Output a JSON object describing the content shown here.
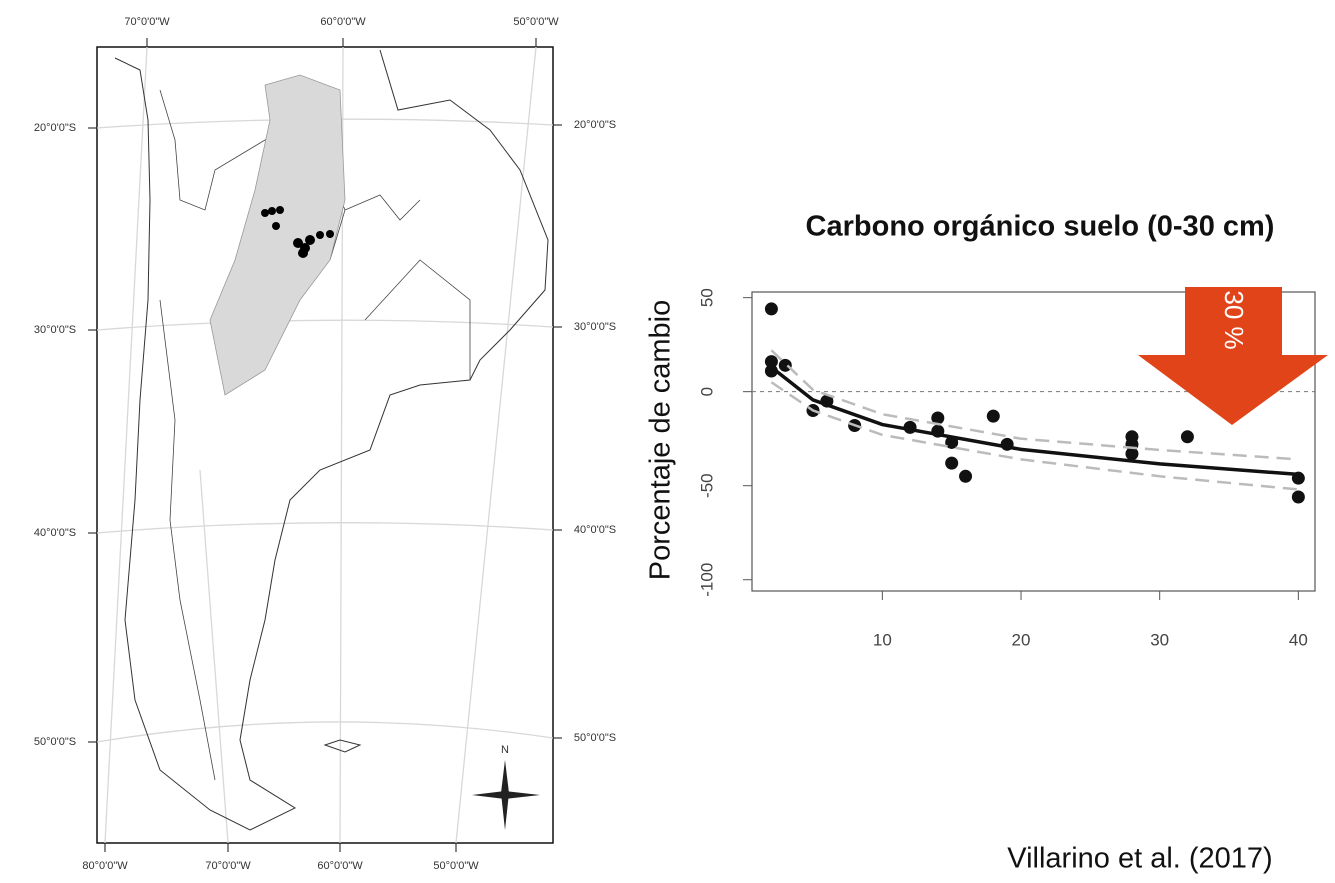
{
  "chart_data": {
    "type": "scatter",
    "title": "Carbono orgánico suelo (0-30 cm)",
    "ylabel": "Porcentaje de cambio",
    "xlim": [
      0.6,
      41.2
    ],
    "ylim": [
      -106,
      53
    ],
    "xticks": [
      10,
      20,
      30,
      40
    ],
    "yticks": [
      50,
      0,
      -50,
      -100
    ],
    "hline": 0,
    "annotation": "30 %",
    "annotation_color": "#e2441a",
    "series": [
      {
        "type": "scatter",
        "color": "#111111",
        "x": [
          2,
          2,
          2,
          3,
          5,
          6,
          8,
          12,
          14,
          14,
          15,
          15,
          16,
          18,
          19,
          28,
          28,
          28,
          32,
          40,
          40
        ],
        "values": [
          44,
          16,
          11,
          14,
          -10,
          -5,
          -18,
          -19,
          -14,
          -21,
          -27,
          -38,
          -45,
          -13,
          -28,
          -24,
          -28,
          -33,
          -24,
          -46,
          -56
        ]
      },
      {
        "type": "line",
        "color": "#bbbbbb",
        "dash": true,
        "x": [
          2,
          5,
          10,
          20,
          30,
          40
        ],
        "values": [
          22,
          1,
          -12,
          -25,
          -31,
          -36
        ]
      },
      {
        "type": "line",
        "color": "#bbbbbb",
        "dash": true,
        "x": [
          2,
          5,
          10,
          20,
          30,
          40
        ],
        "values": [
          5,
          -10,
          -23,
          -36,
          -45,
          -52
        ]
      },
      {
        "type": "line",
        "color": "#111111",
        "dash": false,
        "x": [
          2,
          5,
          10,
          20,
          30,
          40
        ],
        "values": [
          13,
          -4.4,
          -17.5,
          -30.7,
          -38.4,
          -44
        ]
      }
    ]
  },
  "map": {
    "top_labels": [
      "70°0'0\"W",
      "60°0'0\"W",
      "50°0'0\"W"
    ],
    "bottom_labels": [
      "80°0'0\"W",
      "70°0'0\"W",
      "60°0'0\"W",
      "50°0'0\"W"
    ],
    "left_labels": [
      "20°0'0\"S",
      "30°0'0\"S",
      "40°0'0\"S",
      "50°0'0\"S"
    ],
    "right_labels": [
      "20°0'0\"S",
      "30°0'0\"S",
      "40°0'0\"S",
      "50°0'0\"S"
    ],
    "north": "N"
  },
  "citation": "Villarino et al. (2017)"
}
